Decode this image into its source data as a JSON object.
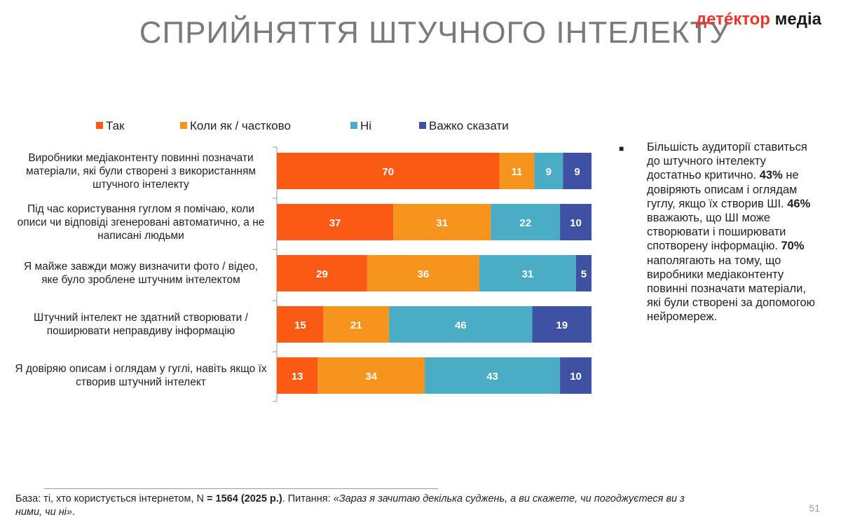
{
  "header": {
    "title": "СПРИЙНЯТТЯ ШТУЧНОГО ІНТЕЛЕКТУ",
    "logo_part1": "детéктор",
    "logo_part2": "медіа"
  },
  "chart_data": {
    "type": "bar",
    "orientation": "horizontal-stacked",
    "categories": [
      "Виробники медіаконтенту повинні позначати матеріали, які були створені з використанням штучного інтелекту",
      "Під час користування гуглом я помічаю, коли описи чи відповіді згенеровані автоматично, а не написані людьми",
      "Я майже завжди можу визначити фото / відео, яке було зроблене штучним інтелектом",
      "Штучний інтелект не здатний створювати / поширювати неправдиву інформацію",
      "Я довіряю описам і оглядам у гуглі, навіть якщо їх створив штучний інтелект"
    ],
    "series": [
      {
        "name": "Так",
        "color": "#fa5a14",
        "values": [
          70,
          37,
          29,
          15,
          13
        ]
      },
      {
        "name": "Коли як / частково",
        "color": "#f7941d",
        "values": [
          11,
          31,
          36,
          21,
          34
        ]
      },
      {
        "name": "Ні",
        "color": "#4bacc6",
        "values": [
          9,
          22,
          31,
          46,
          43
        ]
      },
      {
        "name": "Важко сказати",
        "color": "#3f51a3",
        "values": [
          9,
          10,
          5,
          19,
          10
        ]
      }
    ],
    "legend_position": "top",
    "grid": false
  },
  "bullet": {
    "parts": [
      {
        "text": "Більшість аудиторії ставиться до штучного інтелекту достатньо критично. ",
        "bold": false
      },
      {
        "text": "43%",
        "bold": true
      },
      {
        "text": " не довіряють описам і оглядам гуглу, якщо їх створив ШІ. ",
        "bold": false
      },
      {
        "text": "46%",
        "bold": true
      },
      {
        "text": " вважають, що ШІ може створювати і поширювати спотворену інформацію. ",
        "bold": false
      },
      {
        "text": "70%",
        "bold": true
      },
      {
        "text": " наполягають на тому, що  виробники медіаконтенту повинні позначати матеріали, які були створені за допомогою нейромереж.",
        "bold": false
      }
    ]
  },
  "footnote": {
    "parts": [
      {
        "text": "База: ті, хто користується інтернетом, N ",
        "style": "normal"
      },
      {
        "text": "= 1564 (2025 р.)",
        "style": "bold"
      },
      {
        "text": ". Питання: ",
        "style": "normal"
      },
      {
        "text": "«Зараз я зачитаю декілька суджень, а ви скажете, чи погоджуєтеся ви з ними, чи ні»",
        "style": "italic"
      },
      {
        "text": ".",
        "style": "normal"
      }
    ]
  },
  "page_number": "51"
}
